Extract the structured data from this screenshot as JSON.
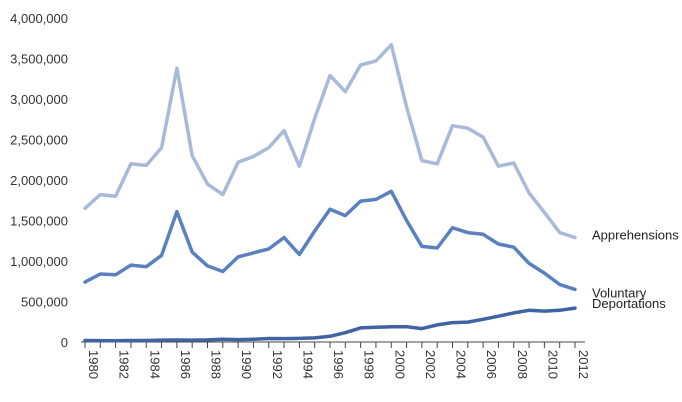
{
  "chart_data": {
    "type": "line",
    "x": [
      1980,
      1981,
      1982,
      1983,
      1984,
      1985,
      1986,
      1987,
      1988,
      1989,
      1990,
      1991,
      1992,
      1993,
      1994,
      1995,
      1996,
      1997,
      1998,
      1999,
      2000,
      2001,
      2002,
      2003,
      2004,
      2005,
      2006,
      2007,
      2008,
      2009,
      2010,
      2011,
      2012
    ],
    "x_tick_labels": [
      "1980",
      "1982",
      "1984",
      "1986",
      "1988",
      "1990",
      "1992",
      "1994",
      "1996",
      "1998",
      "2000",
      "2002",
      "2004",
      "2006",
      "2008",
      "2010",
      "2012"
    ],
    "ylim": [
      0,
      4000000
    ],
    "y_tick_labels": [
      "0",
      "500,000",
      "1,000,000",
      "1,500,000",
      "2,000,000",
      "2,500,000",
      "3,000,000",
      "3,500,000",
      "4,000,000"
    ],
    "grid": false,
    "legend": "direct labels at line ends",
    "series": [
      {
        "name": "Apprehensions",
        "color": "#a9b9d8",
        "values": [
          1650000,
          1820000,
          1800000,
          2200000,
          2180000,
          2400000,
          3380000,
          2300000,
          1950000,
          1820000,
          2220000,
          2290000,
          2400000,
          2610000,
          2170000,
          2760000,
          3290000,
          3090000,
          3420000,
          3470000,
          3670000,
          2900000,
          2240000,
          2200000,
          2670000,
          2640000,
          2530000,
          2170000,
          2210000,
          1840000,
          1600000,
          1350000,
          1290000
        ]
      },
      {
        "name": "Voluntary",
        "color": "#5b80bf",
        "values": [
          740000,
          840000,
          830000,
          950000,
          930000,
          1070000,
          1610000,
          1110000,
          940000,
          870000,
          1050000,
          1100000,
          1150000,
          1290000,
          1080000,
          1370000,
          1640000,
          1560000,
          1740000,
          1760000,
          1860000,
          1500000,
          1180000,
          1160000,
          1410000,
          1350000,
          1330000,
          1210000,
          1170000,
          970000,
          850000,
          710000,
          650000
        ]
      },
      {
        "name": "Deportations",
        "color": "#3f63a3",
        "values": [
          18000,
          17000,
          16000,
          18000,
          19000,
          23000,
          25000,
          24000,
          26000,
          34000,
          30000,
          33000,
          43000,
          42000,
          45000,
          50000,
          70000,
          115000,
          174000,
          183000,
          188000,
          189000,
          165000,
          211000,
          240000,
          246000,
          280000,
          319000,
          359000,
          391000,
          382000,
          391000,
          419000
        ]
      }
    ]
  }
}
